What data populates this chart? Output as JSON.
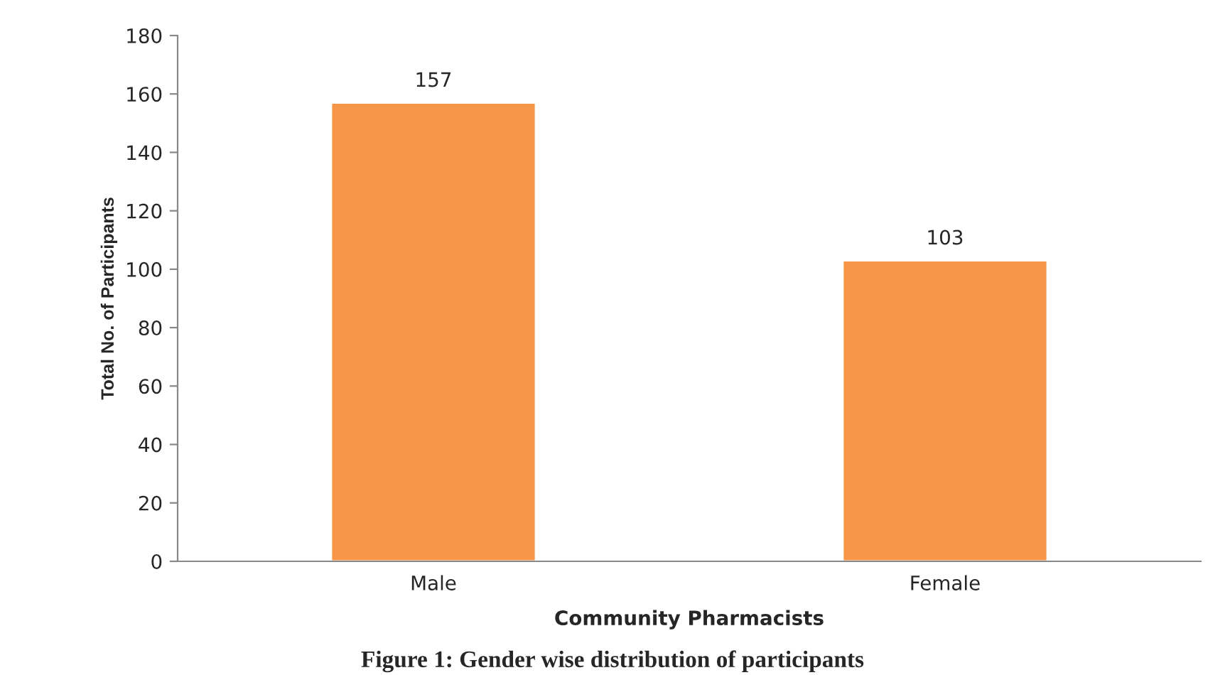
{
  "chart_data": {
    "type": "bar",
    "xlabel": "Community Pharmacists",
    "ylabel": "Total No. of Participants",
    "categories": [
      "Male",
      "Female"
    ],
    "values": [
      157,
      103
    ],
    "color": "#f79646",
    "ylim": [
      0,
      180
    ],
    "yticks": [
      0,
      20,
      40,
      60,
      80,
      100,
      120,
      140,
      160,
      180
    ],
    "grid": false,
    "data_labels": true,
    "annotations": [
      "Figure 1: Gender wise distribution of participants"
    ]
  }
}
